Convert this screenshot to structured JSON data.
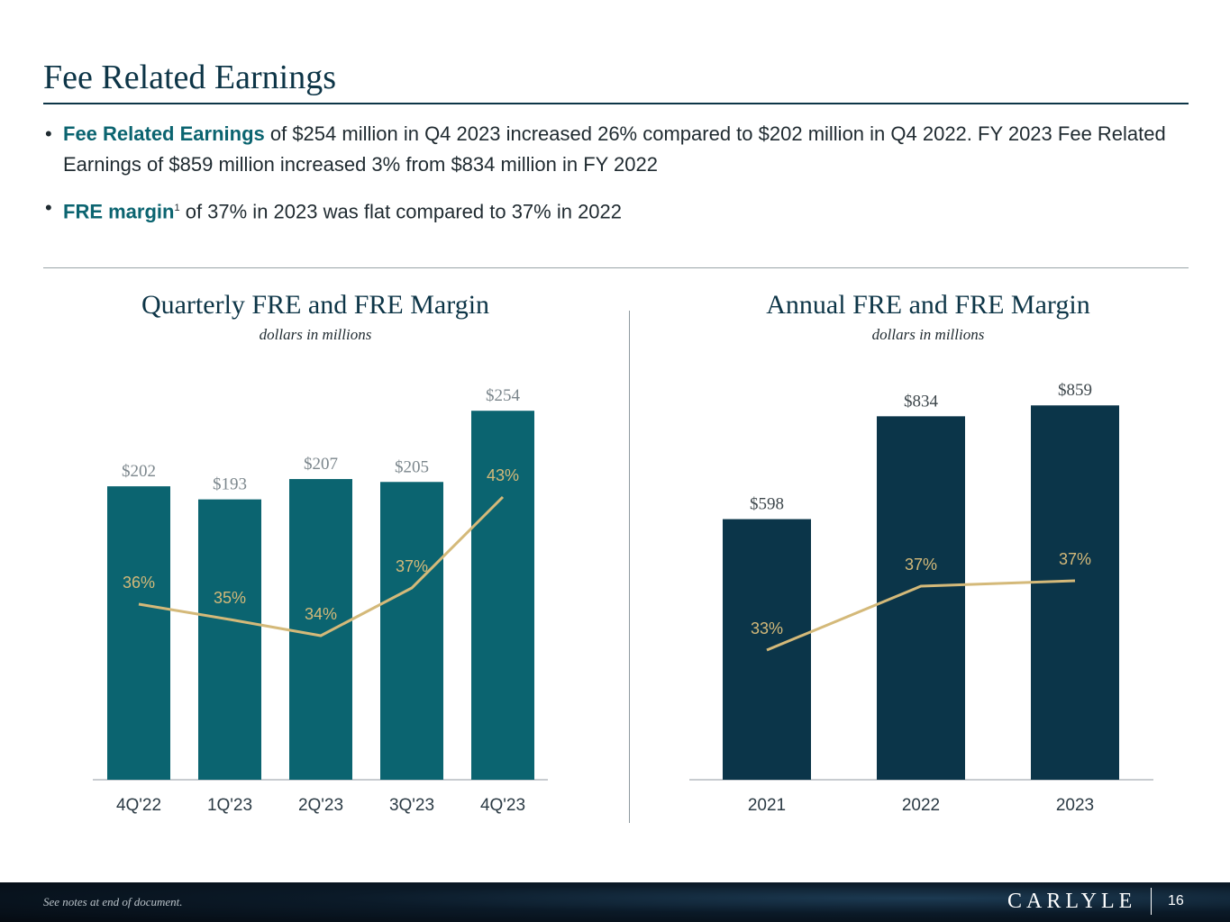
{
  "page": {
    "title": "Fee Related Earnings",
    "bullets": [
      {
        "highlight": "Fee Related Earnings",
        "text": " of $254 million in Q4 2023 increased 26% compared to $202 million in Q4 2022. FY 2023 Fee Related Earnings of $859 million increased 3% from $834 million in FY 2022"
      },
      {
        "highlight": "FRE margin",
        "sup": "1",
        "text": " of 37% in 2023 was flat compared to 37% in 2022"
      }
    ],
    "bullet_symbol": "•"
  },
  "colors": {
    "quarterly_bar": "#0b6470",
    "annual_bar": "#0b3549",
    "margin_line": "#d4b979",
    "bar_label": "#7b868c",
    "annual_bar_label": "#3e474c",
    "axis": "#b5bcc0",
    "tick": "#2b3a44"
  },
  "chart_data": [
    {
      "type": "bar",
      "title": "Quarterly FRE and FRE Margin",
      "subtitle": "dollars in millions",
      "categories": [
        "4Q'22",
        "1Q'23",
        "2Q'23",
        "3Q'23",
        "4Q'23"
      ],
      "series": [
        {
          "name": "FRE",
          "type": "bar",
          "values": [
            202,
            193,
            207,
            205,
            254
          ],
          "labels": [
            "$202",
            "$193",
            "$207",
            "$205",
            "$254"
          ]
        },
        {
          "name": "FRE Margin",
          "type": "line",
          "values": [
            36,
            35,
            34,
            37,
            43
          ],
          "labels": [
            "36%",
            "35%",
            "34%",
            "37%",
            "43%"
          ]
        }
      ],
      "ylim": [
        0,
        300
      ],
      "margin_ylim": [
        0,
        50
      ],
      "grid": false
    },
    {
      "type": "bar",
      "title": "Annual FRE and FRE Margin",
      "subtitle": "dollars in millions",
      "categories": [
        "2021",
        "2022",
        "2023"
      ],
      "series": [
        {
          "name": "FRE",
          "type": "bar",
          "values": [
            598,
            834,
            859
          ],
          "labels": [
            "$598",
            "$834",
            "$859"
          ]
        },
        {
          "name": "FRE Margin",
          "type": "line",
          "values": [
            33,
            37,
            37
          ],
          "labels": [
            "33%",
            "37%",
            "37%"
          ]
        }
      ],
      "ylim": [
        0,
        1000
      ],
      "margin_ylim": [
        0,
        50
      ],
      "grid": false
    }
  ],
  "footer": {
    "note": "See notes at end of document.",
    "brand": "CARLYLE",
    "page_number": "16"
  }
}
